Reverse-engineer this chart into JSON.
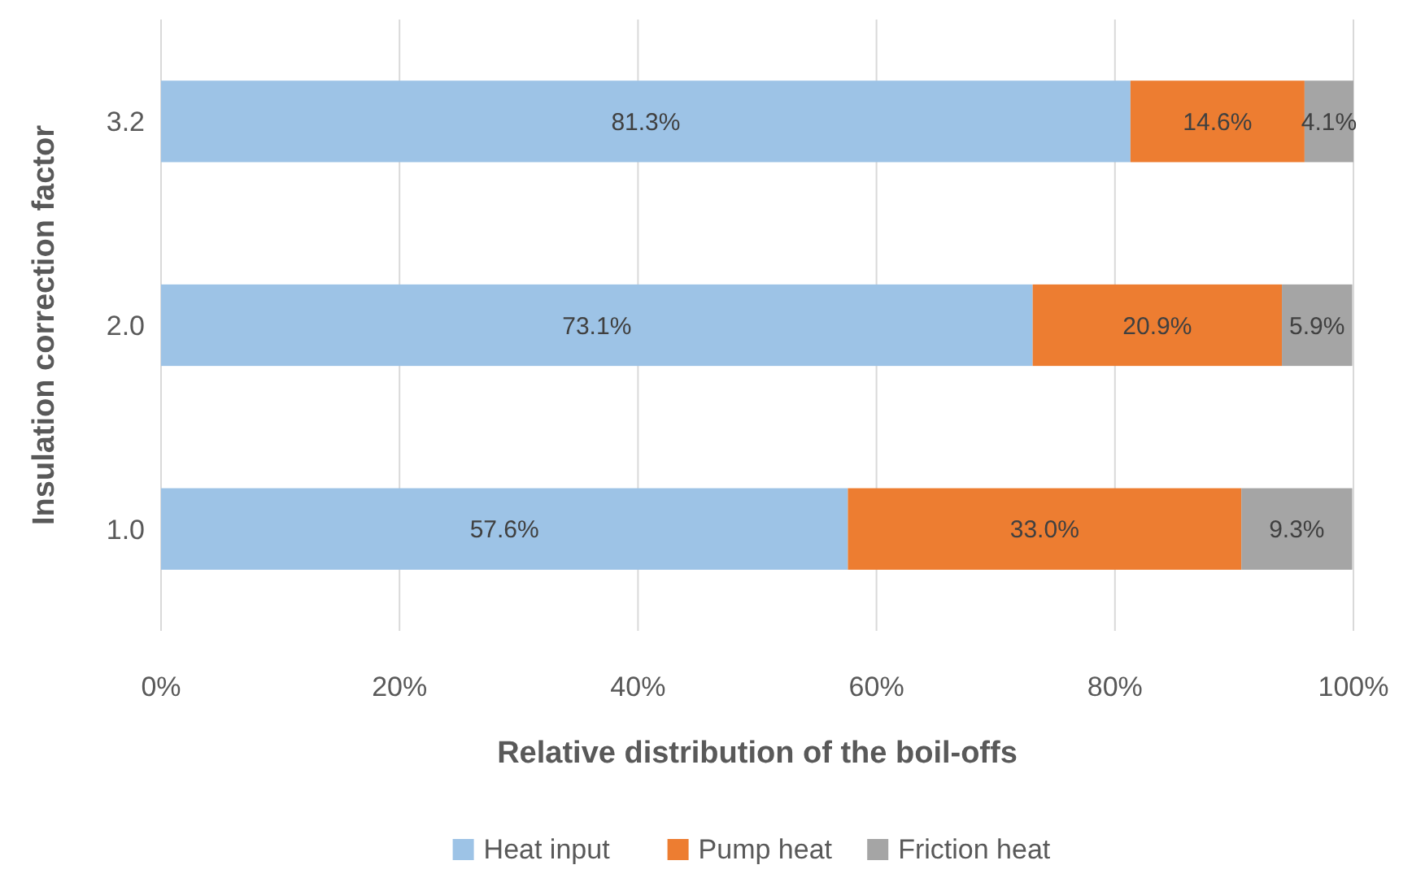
{
  "chart_data": {
    "type": "bar",
    "orientation": "horizontal",
    "stacked": true,
    "xlabel": "Relative distribution of the boil-offs",
    "ylabel": "Insulation correction factor",
    "categories": [
      "3.2",
      "2.0",
      "1.0"
    ],
    "series": [
      {
        "name": "Heat input",
        "color": "#9dc3e6",
        "values": [
          81.3,
          73.1,
          57.6
        ],
        "value_labels": [
          "81.3%",
          "73.1%",
          "57.6%"
        ]
      },
      {
        "name": "Pump heat",
        "color": "#ed7d31",
        "values": [
          14.6,
          20.9,
          33.0
        ],
        "value_labels": [
          "14.6%",
          "20.9%",
          "33.0%"
        ]
      },
      {
        "name": "Friction heat",
        "color": "#a5a5a5",
        "values": [
          4.1,
          5.9,
          9.3
        ],
        "value_labels": [
          "4.1%",
          "5.9%",
          "9.3%"
        ]
      }
    ],
    "xlim": [
      0,
      100
    ],
    "xticks": [
      {
        "value": 0,
        "label": "0%"
      },
      {
        "value": 20,
        "label": "20%"
      },
      {
        "value": 40,
        "label": "40%"
      },
      {
        "value": 60,
        "label": "60%"
      },
      {
        "value": 80,
        "label": "80%"
      },
      {
        "value": 100,
        "label": "100%"
      }
    ],
    "grid": "x",
    "legend": "bottom"
  }
}
